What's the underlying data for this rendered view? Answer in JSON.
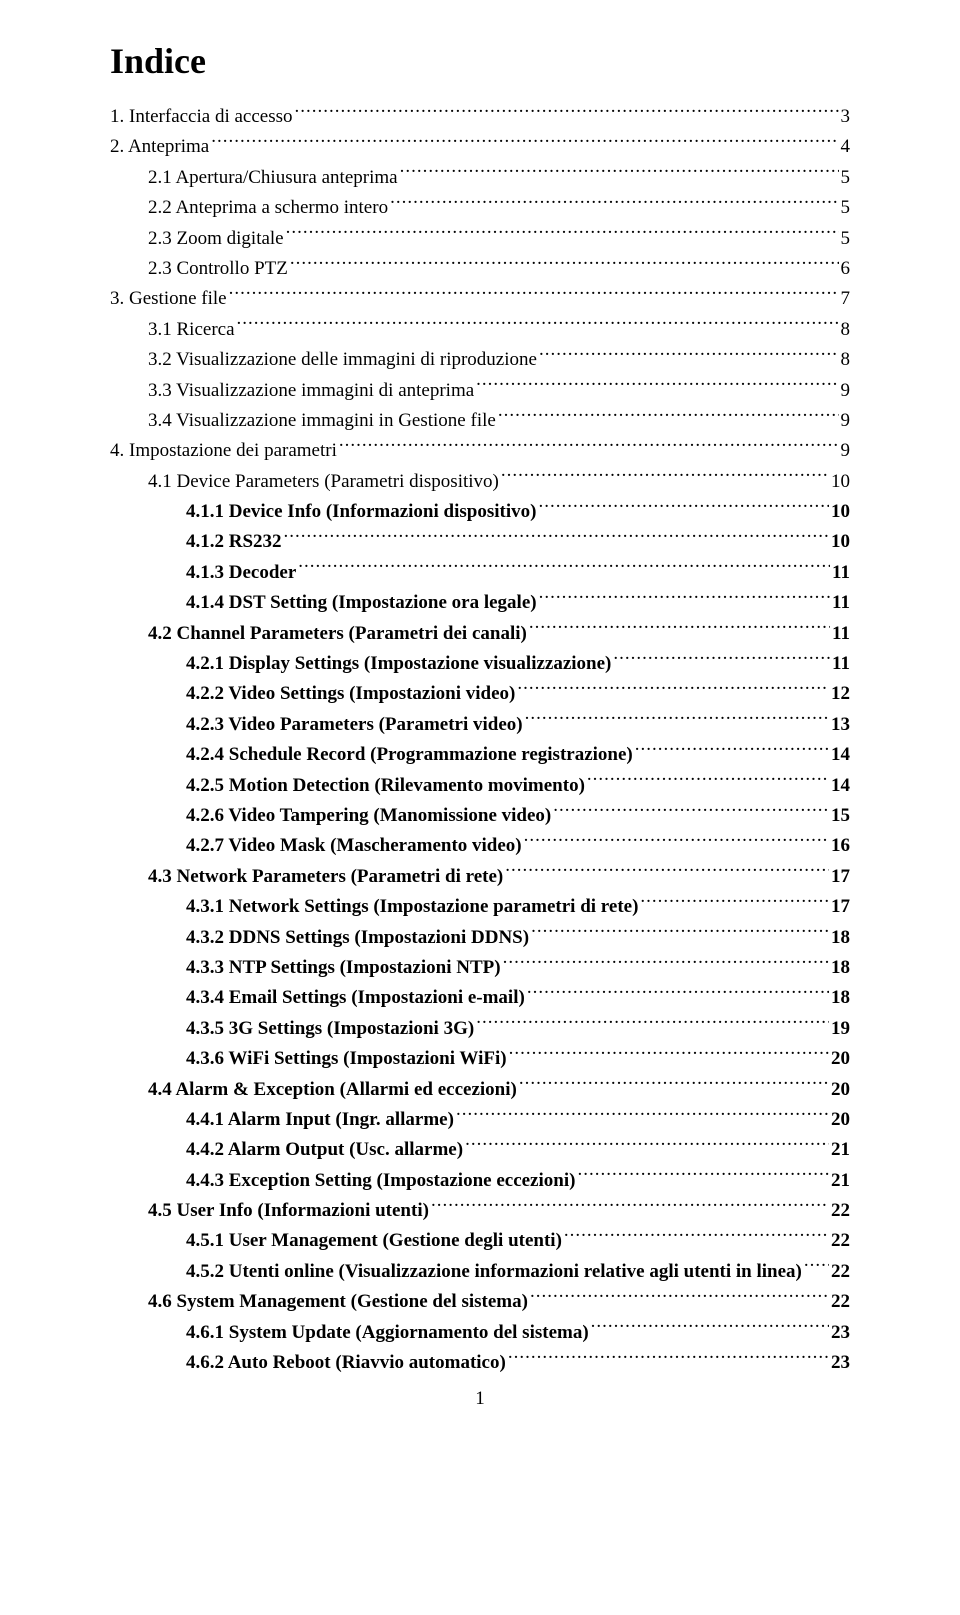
{
  "title": "Indice",
  "page_number": "1",
  "typography": {
    "title_fontsize_pt": 27,
    "body_fontsize_pt": 14,
    "font_family": "Times New Roman"
  },
  "colors": {
    "text": "#000000",
    "background": "#ffffff"
  },
  "entries": [
    {
      "label": "1. Interfaccia di accesso",
      "page": "3",
      "indent": 0,
      "bold": false
    },
    {
      "label": "2. Anteprima",
      "page": "4",
      "indent": 0,
      "bold": false
    },
    {
      "label": "2.1 Apertura/Chiusura anteprima",
      "page": "5",
      "indent": 1,
      "bold": false
    },
    {
      "label": "2.2 Anteprima a schermo intero",
      "page": "5",
      "indent": 1,
      "bold": false
    },
    {
      "label": "2.3 Zoom digitale",
      "page": "5",
      "indent": 1,
      "bold": false
    },
    {
      "label": "2.3 Controllo PTZ",
      "page": "6",
      "indent": 1,
      "bold": false
    },
    {
      "label": "3. Gestione file",
      "page": "7",
      "indent": 0,
      "bold": false
    },
    {
      "label": "3.1 Ricerca",
      "page": "8",
      "indent": 1,
      "bold": false
    },
    {
      "label": "3.2 Visualizzazione delle immagini di riproduzione",
      "page": "8",
      "indent": 1,
      "bold": false
    },
    {
      "label": "3.3 Visualizzazione immagini di anteprima",
      "page": "9",
      "indent": 1,
      "bold": false
    },
    {
      "label": "3.4 Visualizzazione immagini in Gestione file",
      "page": "9",
      "indent": 1,
      "bold": false
    },
    {
      "label": "4. Impostazione dei parametri",
      "page": "9",
      "indent": 0,
      "bold": false
    },
    {
      "label": "4.1 Device Parameters (Parametri dispositivo)",
      "page": "10",
      "indent": 1,
      "bold": false
    },
    {
      "label": "4.1.1 Device Info (Informazioni dispositivo)",
      "page": "10",
      "indent": 2,
      "bold": true
    },
    {
      "label": "4.1.2 RS232",
      "page": "10",
      "indent": 2,
      "bold": true
    },
    {
      "label": "4.1.3 Decoder",
      "page": "11",
      "indent": 2,
      "bold": true
    },
    {
      "label": "4.1.4 DST Setting (Impostazione ora legale)",
      "page": "11",
      "indent": 2,
      "bold": true
    },
    {
      "label": "4.2 Channel Parameters (Parametri dei canali)",
      "page": "11",
      "indent": 1,
      "bold": true
    },
    {
      "label": "4.2.1 Display Settings (Impostazione visualizzazione)",
      "page": "11",
      "indent": 2,
      "bold": true
    },
    {
      "label": "4.2.2 Video Settings (Impostazioni video)",
      "page": "12",
      "indent": 2,
      "bold": true
    },
    {
      "label": "4.2.3 Video Parameters (Parametri video)",
      "page": "13",
      "indent": 2,
      "bold": true
    },
    {
      "label": "4.2.4 Schedule Record (Programmazione registrazione)",
      "page": "14",
      "indent": 2,
      "bold": true
    },
    {
      "label": "4.2.5 Motion Detection (Rilevamento movimento)",
      "page": "14",
      "indent": 2,
      "bold": true
    },
    {
      "label": "4.2.6 Video Tampering (Manomissione video)",
      "page": "15",
      "indent": 2,
      "bold": true
    },
    {
      "label": "4.2.7 Video Mask (Mascheramento video)",
      "page": "16",
      "indent": 2,
      "bold": true
    },
    {
      "label": "4.3 Network Parameters (Parametri di rete)",
      "page": "17",
      "indent": 1,
      "bold": true
    },
    {
      "label": "4.3.1 Network Settings (Impostazione parametri di rete)",
      "page": "17",
      "indent": 2,
      "bold": true
    },
    {
      "label": "4.3.2 DDNS Settings (Impostazioni DDNS)",
      "page": "18",
      "indent": 2,
      "bold": true
    },
    {
      "label": "4.3.3 NTP Settings (Impostazioni NTP)",
      "page": "18",
      "indent": 2,
      "bold": true
    },
    {
      "label": "4.3.4 Email Settings (Impostazioni e-mail)",
      "page": "18",
      "indent": 2,
      "bold": true
    },
    {
      "label": "4.3.5 3G Settings (Impostazioni 3G)",
      "page": "19",
      "indent": 2,
      "bold": true
    },
    {
      "label": "4.3.6 WiFi Settings (Impostazioni WiFi)",
      "page": "20",
      "indent": 2,
      "bold": true
    },
    {
      "label": "4.4 Alarm & Exception (Allarmi ed eccezioni)",
      "page": "20",
      "indent": 1,
      "bold": true
    },
    {
      "label": "4.4.1 Alarm Input (Ingr. allarme)",
      "page": "20",
      "indent": 2,
      "bold": true
    },
    {
      "label": "4.4.2 Alarm Output (Usc. allarme)",
      "page": "21",
      "indent": 2,
      "bold": true
    },
    {
      "label": "4.4.3 Exception Setting (Impostazione eccezioni)",
      "page": "21",
      "indent": 2,
      "bold": true
    },
    {
      "label": "4.5 User Info (Informazioni utenti)",
      "page": "22",
      "indent": 1,
      "bold": true
    },
    {
      "label": "4.5.1 User Management (Gestione degli utenti)",
      "page": "22",
      "indent": 2,
      "bold": true
    },
    {
      "label": "4.5.2 Utenti online (Visualizzazione informazioni relative agli utenti in linea)",
      "page": "22",
      "indent": 2,
      "bold": true
    },
    {
      "label": "4.6 System Management (Gestione del sistema)",
      "page": "22",
      "indent": 1,
      "bold": true
    },
    {
      "label": "4.6.1 System Update (Aggiornamento del sistema)",
      "page": "23",
      "indent": 2,
      "bold": true
    },
    {
      "label": "4.6.2 Auto Reboot (Riavvio automatico)",
      "page": "23",
      "indent": 2,
      "bold": true
    }
  ]
}
